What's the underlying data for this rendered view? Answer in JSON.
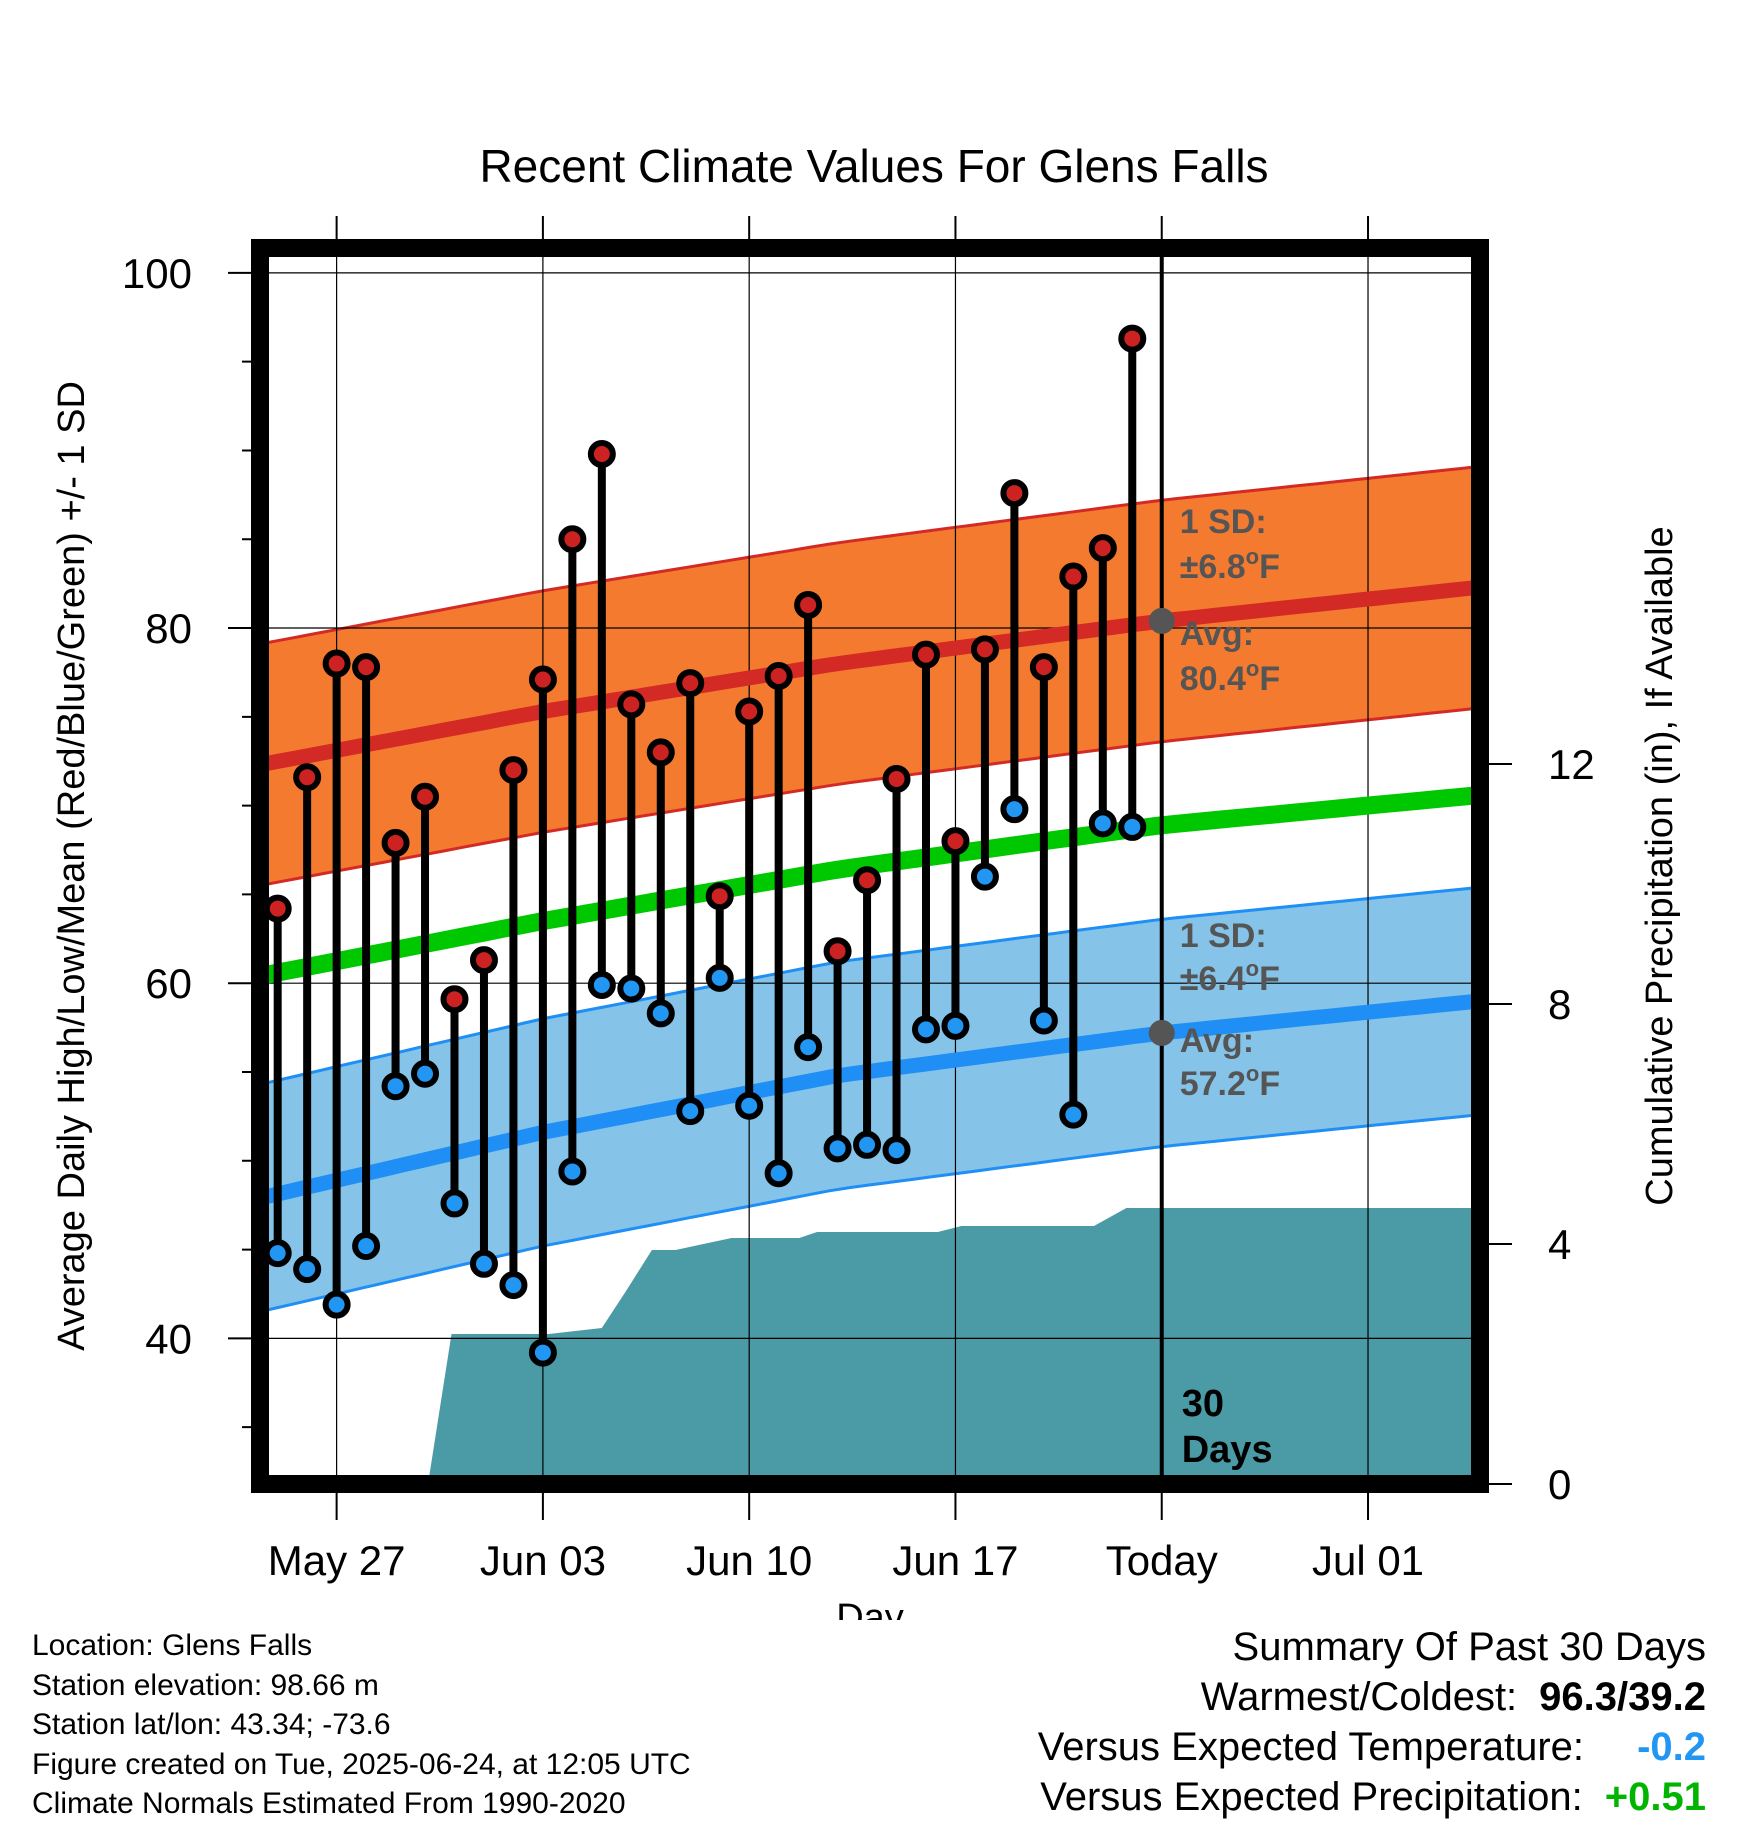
{
  "title": "Recent Climate Values For Glens Falls",
  "ylabel": "Average Daily High/Low/Mean (Red/Blue/Green) +/- 1 SD",
  "ylabel_right": "Cumulative Precipitation (in), If Available",
  "xlabel": "Day",
  "colors": {
    "high_band": "#f47a2f",
    "high_line": "#d42a25",
    "low_band": "#85c3e8",
    "low_line": "#1f8ff5",
    "mean_line": "#00c800",
    "precip": "#4a9ba6",
    "high_dot": "#cc2222",
    "low_dot": "#2196f3",
    "annotation": "#555555",
    "precip_value": "#00b400",
    "temp_value": "#2196f3"
  },
  "chart_data": {
    "type": "line",
    "x_tick_labels": [
      "May 27",
      "Jun 03",
      "Jun 10",
      "Jun 17",
      "Today",
      "Jul 01"
    ],
    "x_tick_days": [
      3,
      10,
      17,
      24,
      31,
      38
    ],
    "x_range_days": [
      0.4,
      41.8
    ],
    "y_left_ticks": [
      40,
      60,
      80,
      100
    ],
    "y_left_range": [
      31.8,
      101.4
    ],
    "y_right_ticks": [
      0,
      4,
      8,
      12
    ],
    "y_right_range": [
      0,
      20.6
    ],
    "today_day": 31,
    "grid": true,
    "normals": {
      "days": [
        0.4,
        10,
        20,
        31,
        41.8
      ],
      "high_mean": [
        72.3,
        75.3,
        78.0,
        80.4,
        82.3
      ],
      "high_sd": 6.8,
      "low_mean": [
        47.9,
        51.6,
        54.8,
        57.2,
        59.0
      ],
      "low_sd": 6.4,
      "mean": [
        60.4,
        63.5,
        66.4,
        68.9,
        70.6
      ]
    },
    "daily_high": [
      64.2,
      71.6,
      78.0,
      77.8,
      67.9,
      70.5,
      59.1,
      61.3,
      72.0,
      77.1,
      85.0,
      89.8,
      75.7,
      73.0,
      76.9,
      64.9,
      75.3,
      77.3,
      81.3,
      61.8,
      65.8,
      71.5,
      78.5,
      68.0,
      78.8,
      87.6,
      77.8,
      82.9,
      84.5,
      96.3
    ],
    "daily_low": [
      44.8,
      43.9,
      41.9,
      45.2,
      54.2,
      54.9,
      47.6,
      44.2,
      43.0,
      39.2,
      49.4,
      59.9,
      59.7,
      58.3,
      52.8,
      60.3,
      53.1,
      49.3,
      56.4,
      50.7,
      50.9,
      50.6,
      57.4,
      57.6,
      66.0,
      69.8,
      57.9,
      52.6,
      69.0,
      68.8
    ],
    "precip_cumulative": {
      "days": [
        6.1,
        6.9,
        10.2,
        12.0,
        12.8,
        13.7,
        14.5,
        16.4,
        18.7,
        19.3,
        23.4,
        24.2,
        24.9,
        28.7,
        29.8,
        41.8
      ],
      "values": [
        0,
        2.5,
        2.5,
        2.6,
        3.2,
        3.9,
        3.9,
        4.1,
        4.1,
        4.2,
        4.2,
        4.3,
        4.3,
        4.3,
        4.6,
        4.6
      ]
    },
    "annotations": {
      "high_sd_label": "1 SD:",
      "high_sd_value": "±6.8",
      "high_avg_label": "Avg:",
      "high_avg_value": "80.4",
      "low_sd_label": "1 SD:",
      "low_sd_value": "±6.4",
      "low_avg_label": "Avg:",
      "low_avg_value": "57.2",
      "degree_symbol": "o",
      "unit": "F",
      "days_line1": "30",
      "days_line2": "Days"
    }
  },
  "info": {
    "location": "Location: Glens Falls",
    "elevation": "Station elevation: 98.66 m",
    "latlon": "Station lat/lon: 43.34; -73.6",
    "created": "Figure created on Tue, 2025-06-24, at 12:05 UTC",
    "normals": "Climate Normals Estimated From 1990-2020"
  },
  "summary": {
    "heading": "Summary Of Past 30 Days",
    "warmest_label": "Warmest/Coldest:",
    "warmest_value": "96.3/39.2",
    "temp_label": "Versus Expected Temperature:",
    "temp_value": "-0.2",
    "precip_label": "Versus Expected Precipitation:",
    "precip_value": "+0.51"
  }
}
